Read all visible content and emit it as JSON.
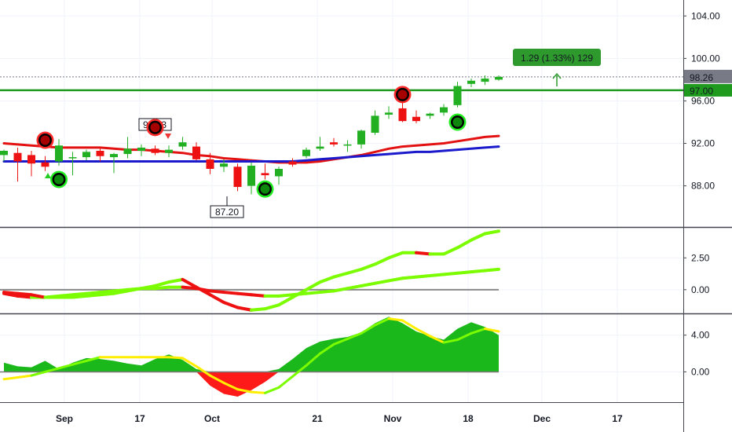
{
  "chart_data": [
    {
      "type": "candlestick",
      "panel": "price",
      "x_labels": [
        "Sep",
        "17",
        "Oct",
        "21",
        "Nov",
        "18",
        "Dec",
        "17"
      ],
      "y_ticks": [
        "104.00",
        "100.00",
        "96.00",
        "92.00",
        "88.00"
      ],
      "y_tick_values": [
        104,
        100,
        96,
        92,
        88
      ],
      "ylim": [
        84.2,
        105.5
      ],
      "last_price_label": "98.26",
      "last_price": 98.26,
      "level_label": "97.00",
      "level_price": 97.0,
      "measure_label": "1.29 (1.33%) 129",
      "low_label": "87.20",
      "high_label": "9_._3",
      "candles": [
        {
          "o": 90.9,
          "h": 91.4,
          "l": 90.3,
          "c": 91.3
        },
        {
          "o": 91.1,
          "h": 91.6,
          "l": 88.4,
          "c": 90.3
        },
        {
          "o": 90.9,
          "h": 91.3,
          "l": 88.9,
          "c": 90.1
        },
        {
          "o": 90.2,
          "h": 90.8,
          "l": 89.4,
          "c": 89.8
        },
        {
          "o": 90.3,
          "h": 92.4,
          "l": 89.9,
          "c": 91.8
        },
        {
          "o": 90.6,
          "h": 91.2,
          "l": 89.0,
          "c": 90.7
        },
        {
          "o": 90.7,
          "h": 91.4,
          "l": 90.4,
          "c": 91.2
        },
        {
          "o": 91.3,
          "h": 91.6,
          "l": 90.3,
          "c": 90.8
        },
        {
          "o": 90.7,
          "h": 91.1,
          "l": 89.2,
          "c": 91.0
        },
        {
          "o": 91.0,
          "h": 92.6,
          "l": 90.6,
          "c": 91.5
        },
        {
          "o": 91.3,
          "h": 91.9,
          "l": 90.8,
          "c": 91.6
        },
        {
          "o": 91.5,
          "h": 91.8,
          "l": 90.9,
          "c": 91.1
        },
        {
          "o": 91.1,
          "h": 91.8,
          "l": 90.7,
          "c": 91.4
        },
        {
          "o": 91.7,
          "h": 92.6,
          "l": 91.4,
          "c": 92.1
        },
        {
          "o": 91.7,
          "h": 92.1,
          "l": 90.4,
          "c": 90.5
        },
        {
          "o": 90.5,
          "h": 91.1,
          "l": 89.1,
          "c": 89.6
        },
        {
          "o": 89.8,
          "h": 90.5,
          "l": 89.3,
          "c": 90.1
        },
        {
          "o": 89.8,
          "h": 90.1,
          "l": 87.5,
          "c": 87.9
        },
        {
          "o": 88.0,
          "h": 90.2,
          "l": 87.2,
          "c": 89.9
        },
        {
          "o": 89.2,
          "h": 90.1,
          "l": 88.6,
          "c": 89.0
        },
        {
          "o": 88.9,
          "h": 89.8,
          "l": 88.1,
          "c": 89.6
        },
        {
          "o": 90.3,
          "h": 90.6,
          "l": 89.8,
          "c": 90.0
        },
        {
          "o": 90.8,
          "h": 91.6,
          "l": 90.6,
          "c": 91.4
        },
        {
          "o": 91.5,
          "h": 92.6,
          "l": 91.3,
          "c": 91.7
        },
        {
          "o": 92.1,
          "h": 92.5,
          "l": 91.7,
          "c": 91.9
        },
        {
          "o": 91.8,
          "h": 92.3,
          "l": 91.2,
          "c": 91.9
        },
        {
          "o": 91.9,
          "h": 93.3,
          "l": 91.5,
          "c": 93.2
        },
        {
          "o": 93.0,
          "h": 95.1,
          "l": 92.8,
          "c": 94.6
        },
        {
          "o": 94.7,
          "h": 95.5,
          "l": 94.3,
          "c": 94.9
        },
        {
          "o": 95.3,
          "h": 96.9,
          "l": 94.0,
          "c": 94.1
        },
        {
          "o": 94.5,
          "h": 95.1,
          "l": 93.9,
          "c": 94.1
        },
        {
          "o": 94.6,
          "h": 94.9,
          "l": 94.3,
          "c": 94.8
        },
        {
          "o": 94.9,
          "h": 95.7,
          "l": 94.6,
          "c": 95.4
        },
        {
          "o": 95.6,
          "h": 97.8,
          "l": 95.4,
          "c": 97.4
        },
        {
          "o": 97.6,
          "h": 98.1,
          "l": 97.3,
          "c": 97.9
        },
        {
          "o": 97.8,
          "h": 98.4,
          "l": 97.5,
          "c": 98.1
        },
        {
          "o": 98.0,
          "h": 98.4,
          "l": 97.9,
          "c": 98.26
        }
      ],
      "ma_red": [
        92.0,
        91.9,
        91.8,
        91.7,
        91.6,
        91.6,
        91.6,
        91.6,
        91.5,
        91.4,
        91.4,
        91.3,
        91.2,
        91.1,
        90.9,
        90.8,
        90.6,
        90.5,
        90.4,
        90.3,
        90.2,
        90.2,
        90.2,
        90.3,
        90.5,
        90.7,
        90.9,
        91.2,
        91.5,
        91.7,
        91.8,
        91.9,
        92.0,
        92.2,
        92.4,
        92.6,
        92.7
      ],
      "ma_blue": [
        90.3,
        90.3,
        90.3,
        90.3,
        90.3,
        90.3,
        90.3,
        90.3,
        90.3,
        90.3,
        90.3,
        90.3,
        90.3,
        90.3,
        90.3,
        90.3,
        90.3,
        90.3,
        90.3,
        90.3,
        90.3,
        90.3,
        90.4,
        90.5,
        90.6,
        90.7,
        90.8,
        90.9,
        91.0,
        91.1,
        91.2,
        91.2,
        91.3,
        91.4,
        91.5,
        91.6,
        91.7
      ],
      "signals": [
        {
          "i": 3,
          "kind": "sell",
          "price": 92.3
        },
        {
          "i": 4,
          "kind": "buy",
          "price": 88.6
        },
        {
          "i": 11,
          "kind": "sell",
          "price": 93.5
        },
        {
          "i": 19,
          "kind": "buy",
          "price": 87.7
        },
        {
          "i": 29,
          "kind": "sell",
          "price": 96.6
        },
        {
          "i": 33,
          "kind": "buy",
          "price": 94.0
        }
      ]
    },
    {
      "type": "line",
      "panel": "oscillator",
      "y_ticks": [
        "2.50",
        "0.00"
      ],
      "y_tick_values": [
        2.5,
        0.0
      ],
      "ylim": [
        -1.8,
        4.8
      ],
      "fast": [
        -0.2,
        -0.3,
        -0.4,
        -0.6,
        -0.6,
        -0.6,
        -0.5,
        -0.4,
        -0.3,
        -0.1,
        0.1,
        0.3,
        0.6,
        0.8,
        0.2,
        -0.4,
        -1.0,
        -1.4,
        -1.6,
        -1.5,
        -1.2,
        -0.6,
        0.0,
        0.6,
        1.0,
        1.3,
        1.6,
        2.0,
        2.5,
        2.9,
        2.9,
        2.8,
        2.8,
        3.3,
        3.9,
        4.4,
        4.6
      ],
      "slow": [
        -0.3,
        -0.5,
        -0.6,
        -0.6,
        -0.5,
        -0.4,
        -0.3,
        -0.2,
        -0.1,
        0.0,
        0.1,
        0.1,
        0.2,
        0.2,
        0.1,
        -0.1,
        -0.2,
        -0.3,
        -0.4,
        -0.5,
        -0.5,
        -0.4,
        -0.3,
        -0.2,
        -0.1,
        0.1,
        0.3,
        0.5,
        0.7,
        0.9,
        1.0,
        1.1,
        1.2,
        1.3,
        1.4,
        1.5,
        1.6
      ]
    },
    {
      "type": "area",
      "panel": "histogram",
      "y_ticks": [
        "4.00",
        "0.00"
      ],
      "y_tick_values": [
        4.0,
        0.0
      ],
      "ylim": [
        -3.3,
        6.2
      ],
      "bars": [
        1.0,
        0.6,
        0.5,
        1.2,
        0.3,
        1.0,
        1.5,
        1.4,
        1.2,
        0.9,
        0.7,
        1.4,
        1.9,
        1.3,
        0.3,
        -1.5,
        -2.4,
        -2.7,
        -2.0,
        -1.1,
        0.3,
        1.4,
        2.6,
        3.3,
        3.6,
        3.8,
        4.3,
        5.3,
        6.0,
        5.3,
        4.4,
        3.9,
        3.5,
        4.7,
        5.4,
        4.9,
        4.0
      ],
      "signal": [
        -0.8,
        -0.6,
        -0.4,
        0.0,
        0.4,
        0.8,
        1.2,
        1.6,
        1.6,
        1.6,
        1.6,
        1.6,
        1.6,
        1.5,
        0.6,
        -0.4,
        -1.2,
        -1.9,
        -2.2,
        -2.3,
        -1.7,
        -0.5,
        0.7,
        2.0,
        3.0,
        3.6,
        4.2,
        5.1,
        5.8,
        5.6,
        4.7,
        3.9,
        3.2,
        3.5,
        4.2,
        4.7,
        4.4
      ]
    }
  ]
}
